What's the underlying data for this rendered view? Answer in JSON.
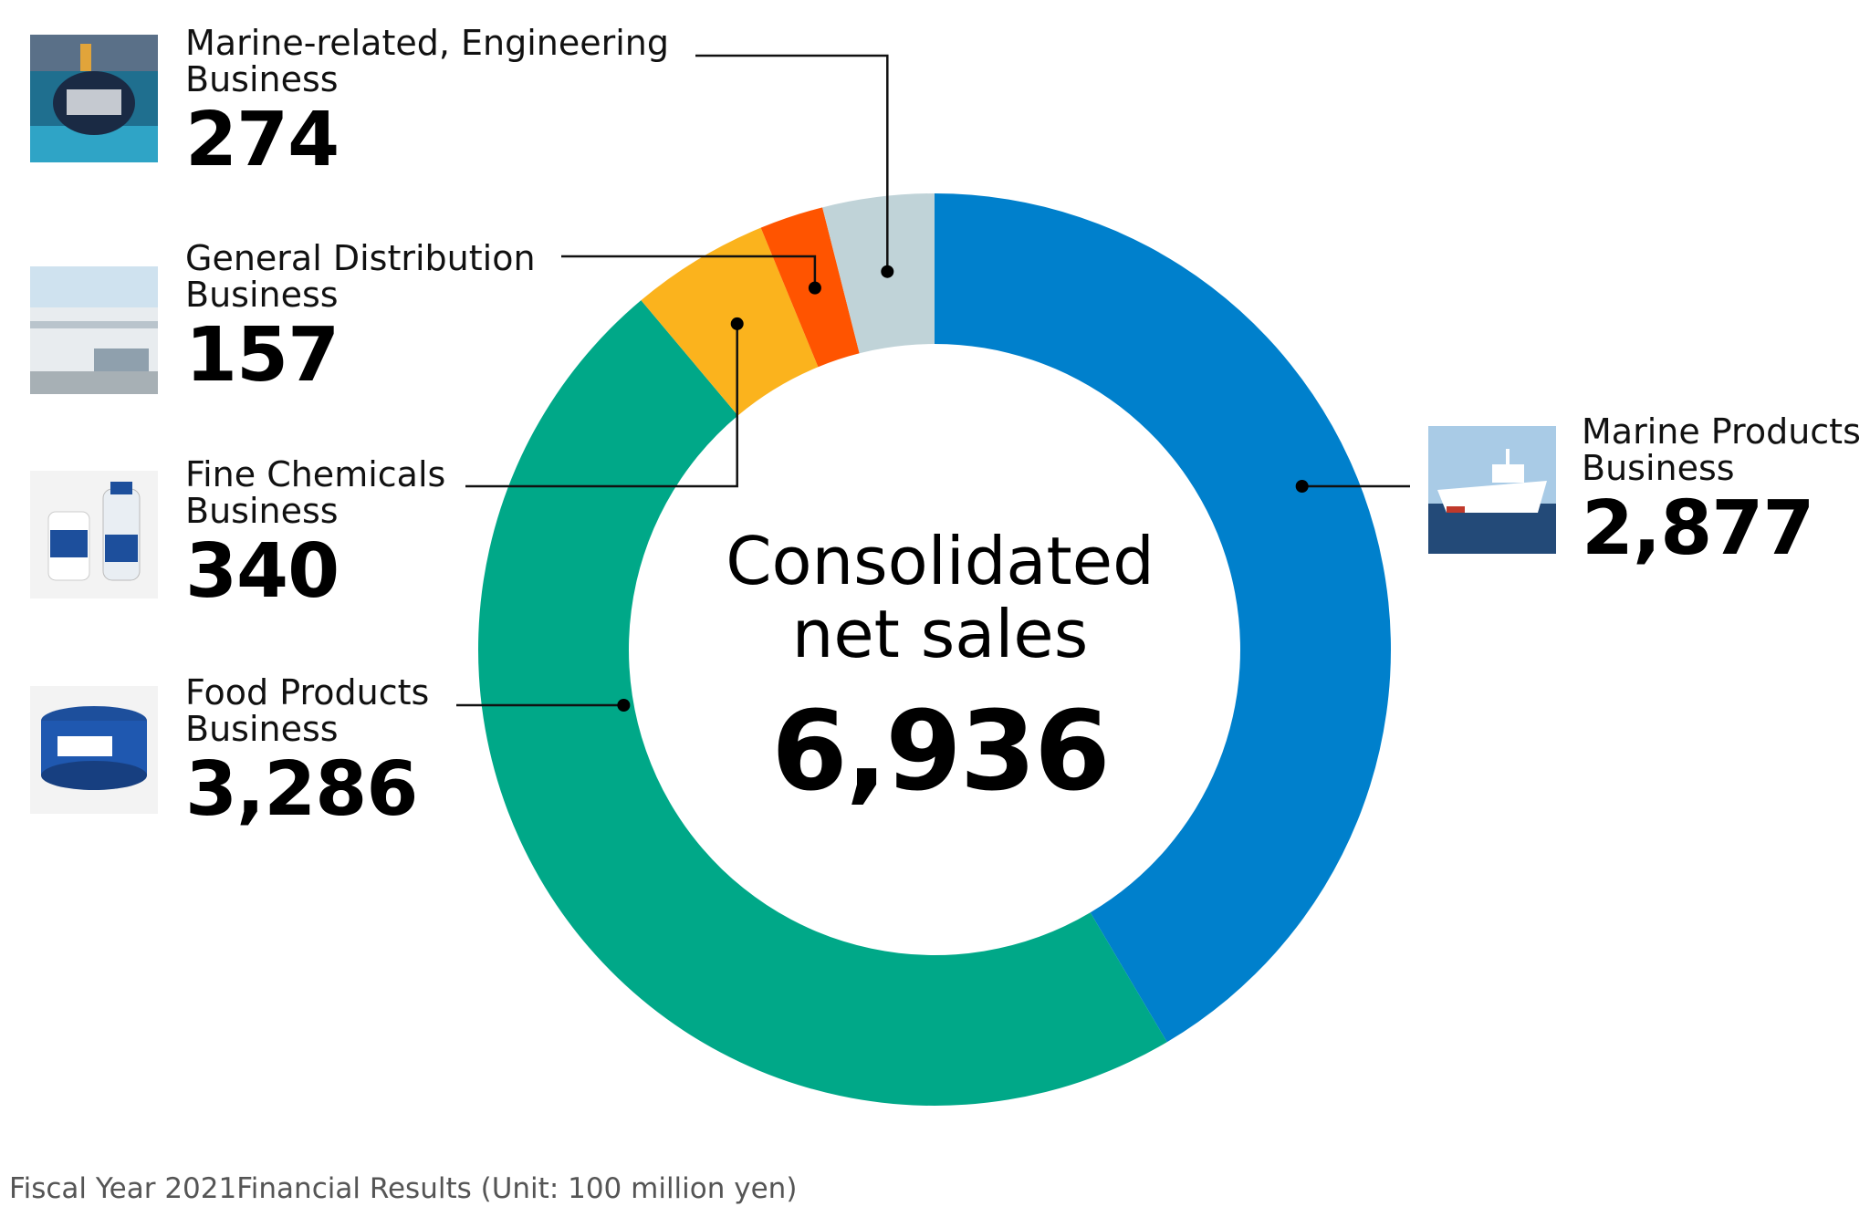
{
  "chart_data": {
    "type": "pie",
    "subtype": "donut",
    "center_title_line1": "Consolidated",
    "center_title_line2": "net sales",
    "center_total": "6,936",
    "footnote": "Fiscal Year 2021Financial Results (Unit: 100 million yen)",
    "slices": [
      {
        "label_line1": "Marine Products",
        "label_line2": "Business",
        "value": 2877,
        "value_text": "2,877",
        "color": "#0080cc"
      },
      {
        "label_line1": "Food Products",
        "label_line2": "Business",
        "value": 3286,
        "value_text": "3,286",
        "color": "#00a888"
      },
      {
        "label_line1": "Fine Chemicals",
        "label_line2": "Business",
        "value": 340,
        "value_text": "340",
        "color": "#fbb31d"
      },
      {
        "label_line1": "General Distribution",
        "label_line2": "Business",
        "value": 157,
        "value_text": "157",
        "color": "#ff5400"
      },
      {
        "label_line1": "Marine-related, Engineering",
        "label_line2": "Business",
        "value": 274,
        "value_text": "274",
        "color": "#c0d3d8"
      }
    ]
  }
}
